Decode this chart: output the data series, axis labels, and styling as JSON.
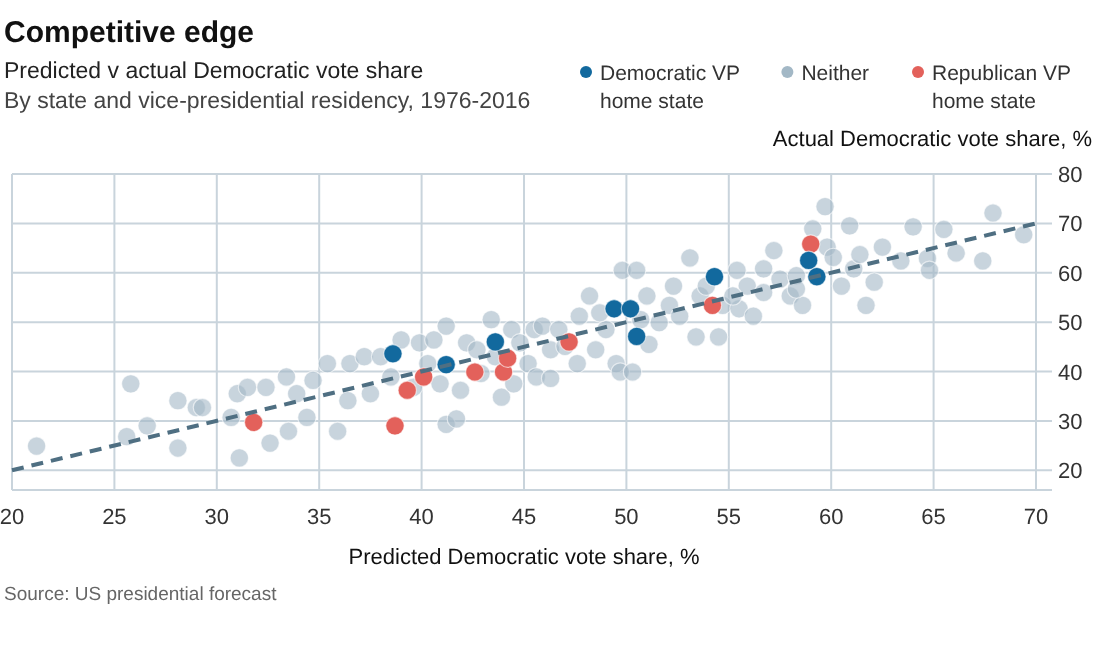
{
  "chart_data": {
    "type": "scatter",
    "title": "Competitive edge",
    "subtitle": "Predicted v actual Democratic vote share\nBy state and vice-presidential residency, 1976-2016",
    "xlabel": "Predicted Democratic vote share, %",
    "ylabel": "Actual Democratic vote share, %",
    "annotations": [
      "Source: US presidential forecast"
    ],
    "xlim": [
      20,
      70
    ],
    "ylim": [
      16,
      80
    ],
    "xticks": [
      20,
      25,
      30,
      35,
      40,
      45,
      50,
      55,
      60,
      65,
      70
    ],
    "yticks": [
      20,
      30,
      40,
      50,
      60,
      70,
      80
    ],
    "grid": true,
    "legend": "top right",
    "marker": "circle",
    "series": [
      {
        "name": "Democratic VP home state",
        "color": "#12699e",
        "x": [
          38.6,
          41.2,
          43.6,
          49.4,
          50.2,
          50.5,
          54.3,
          58.9,
          59.3
        ],
        "values": [
          43.6,
          41.4,
          46.0,
          52.7,
          52.7,
          47.1,
          59.2,
          62.5,
          59.2
        ]
      },
      {
        "name": "Neither",
        "color": "#a3b8c6",
        "x": [
          21.2,
          25.8,
          25.6,
          26.6,
          28.1,
          28.1,
          29.0,
          29.3,
          30.7,
          31.1,
          31.0,
          31.5,
          32.4,
          32.6,
          33.4,
          33.5,
          33.9,
          34.4,
          34.7,
          35.4,
          35.9,
          36.4,
          36.5,
          37.2,
          37.5,
          38.0,
          38.5,
          39.0,
          39.6,
          39.9,
          40.3,
          40.6,
          40.9,
          41.2,
          41.2,
          41.7,
          41.9,
          42.2,
          42.7,
          42.9,
          43.4,
          43.6,
          43.9,
          44.4,
          44.5,
          44.8,
          45.2,
          45.5,
          45.6,
          45.9,
          46.3,
          46.3,
          46.7,
          47.6,
          47.7,
          48.2,
          48.5,
          49.0,
          49.5,
          49.7,
          50.3,
          49.8,
          50.5,
          51.0,
          51.1,
          51.6,
          52.1,
          52.6,
          53.1,
          53.4,
          53.6,
          53.9,
          54.5,
          54.7,
          55.4,
          55.5,
          55.9,
          56.2,
          56.7,
          57.2,
          57.5,
          58.0,
          58.3,
          58.6,
          59.1,
          59.7,
          59.8,
          60.1,
          60.5,
          60.9,
          61.1,
          61.4,
          61.7,
          62.1,
          62.5,
          63.4,
          64.0,
          64.7,
          64.8,
          65.5,
          66.1,
          67.4,
          67.9,
          69.4,
          58.3,
          56.7,
          55.2,
          52.3,
          50.7,
          48.7,
          47.0
        ],
        "values": [
          24.9,
          37.5,
          26.8,
          29.0,
          34.1,
          24.5,
          32.7,
          32.7,
          30.7,
          22.5,
          35.5,
          36.8,
          36.8,
          25.5,
          38.9,
          27.9,
          35.5,
          30.7,
          38.2,
          41.6,
          27.9,
          34.1,
          41.6,
          43.0,
          35.5,
          43.0,
          38.9,
          46.4,
          36.8,
          45.8,
          41.6,
          46.4,
          37.5,
          49.2,
          29.3,
          30.4,
          36.2,
          45.8,
          44.4,
          39.6,
          50.5,
          43.0,
          34.8,
          48.5,
          37.5,
          45.8,
          41.6,
          48.5,
          38.9,
          49.2,
          44.4,
          38.6,
          48.5,
          41.6,
          51.2,
          55.3,
          44.4,
          48.5,
          41.6,
          39.9,
          39.9,
          60.5,
          60.5,
          55.3,
          45.5,
          49.9,
          53.4,
          51.2,
          63.0,
          47.0,
          55.3,
          57.3,
          47.0,
          53.4,
          60.5,
          52.7,
          57.3,
          51.2,
          56.0,
          64.5,
          58.7,
          55.3,
          59.4,
          53.4,
          68.9,
          73.4,
          65.2,
          63.1,
          57.3,
          69.5,
          60.8,
          63.7,
          53.4,
          58.1,
          65.2,
          62.4,
          69.3,
          62.9,
          60.5,
          68.8,
          64.0,
          62.4,
          72.1,
          67.7,
          56.7,
          60.8,
          55.3,
          57.3,
          50.5,
          51.9,
          45.1
        ]
      },
      {
        "name": "Republican VP home state",
        "color": "#e3615b",
        "x": [
          31.8,
          38.7,
          39.3,
          40.1,
          42.6,
          44.0,
          44.2,
          47.2,
          54.2,
          59.0
        ],
        "values": [
          29.7,
          29.0,
          36.2,
          38.9,
          39.9,
          39.9,
          42.7,
          46.0,
          53.4,
          65.8
        ]
      },
      {
        "type": "line",
        "color": "#4f6f82",
        "line_style": "dashed",
        "marker": "none",
        "x": [
          20,
          70
        ],
        "values": [
          20,
          70
        ]
      }
    ]
  }
}
